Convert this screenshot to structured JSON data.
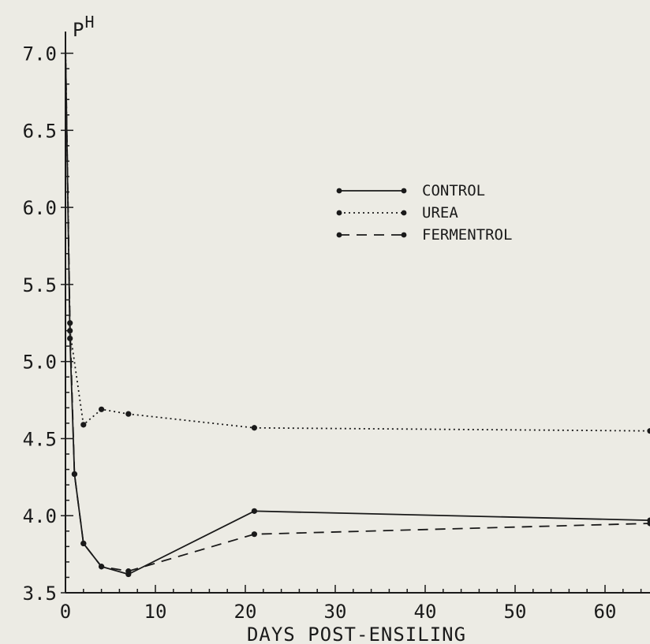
{
  "chart_data": {
    "type": "line",
    "title": "",
    "xlabel": "DAYS POST-ENSILING",
    "ylabel": "PH",
    "xlim": [
      0,
      65
    ],
    "ylim": [
      3.5,
      7.1
    ],
    "x_ticks": [
      "0",
      "10",
      "20",
      "30",
      "40",
      "50",
      "60"
    ],
    "y_ticks": [
      "3.5",
      "4.0",
      "4.5",
      "5.0",
      "5.5",
      "6.0",
      "6.5",
      "7.0"
    ],
    "grid": false,
    "legend_position": "top-center",
    "series": [
      {
        "name": "CONTROL",
        "style": "solid",
        "points": [
          [
            0,
            7.05
          ],
          [
            0.5,
            5.15
          ],
          [
            1,
            4.27
          ],
          [
            2,
            3.82
          ],
          [
            4,
            3.67
          ],
          [
            7,
            3.62
          ],
          [
            21,
            4.03
          ],
          [
            65,
            3.97
          ]
        ]
      },
      {
        "name": "UREA",
        "style": "dotted",
        "points": [
          [
            0,
            7.05
          ],
          [
            0.5,
            5.2
          ],
          [
            2,
            4.59
          ],
          [
            4,
            4.69
          ],
          [
            7,
            4.66
          ],
          [
            21,
            4.57
          ],
          [
            65,
            4.55
          ]
        ]
      },
      {
        "name": "FERMENTROL",
        "style": "dashed",
        "points": [
          [
            0,
            7.05
          ],
          [
            0.5,
            5.25
          ],
          [
            1,
            4.27
          ],
          [
            2,
            3.82
          ],
          [
            4,
            3.67
          ],
          [
            7,
            3.64
          ],
          [
            21,
            3.88
          ],
          [
            65,
            3.95
          ]
        ]
      }
    ]
  }
}
